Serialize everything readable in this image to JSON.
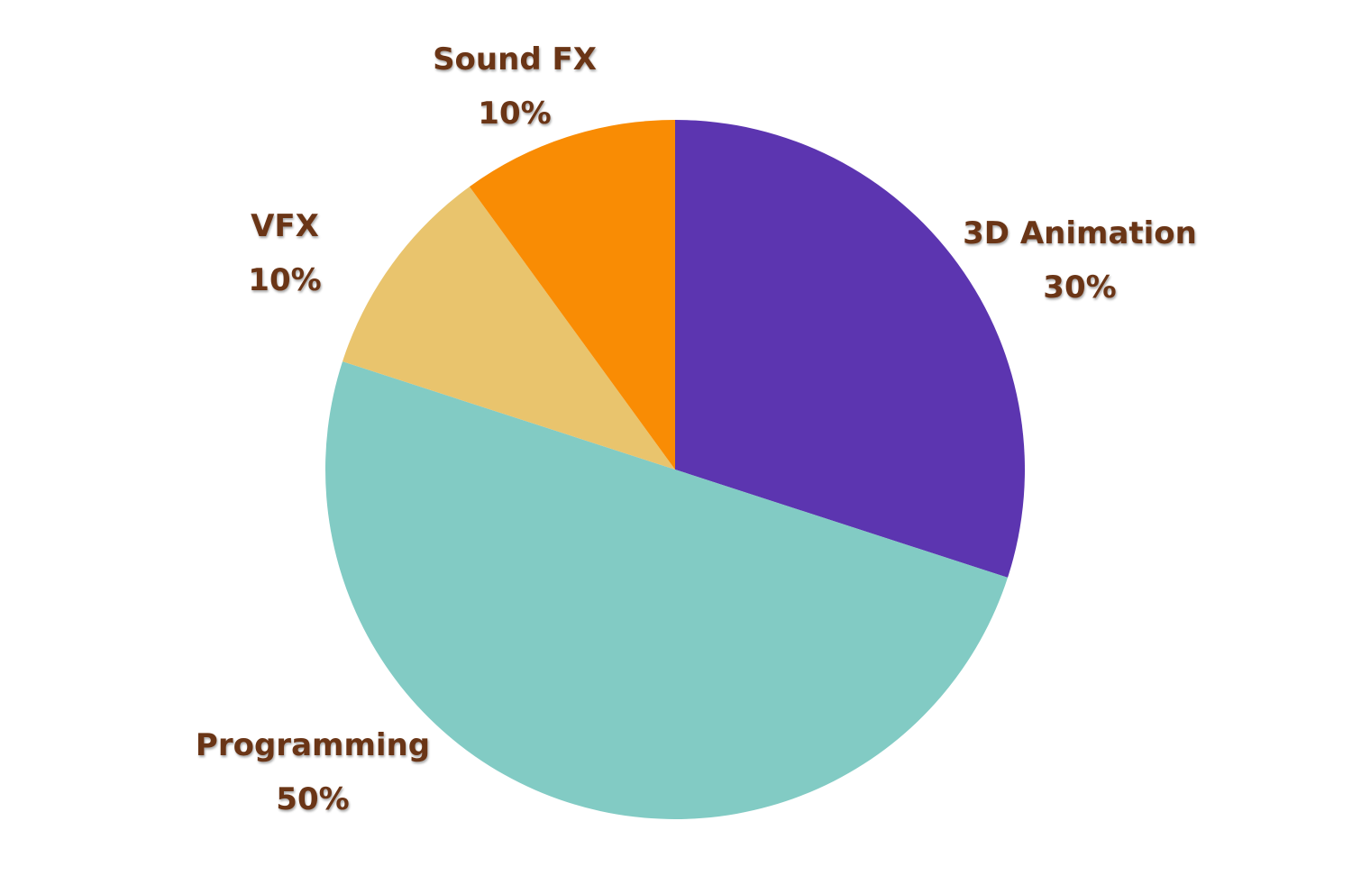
{
  "chart_data": {
    "type": "pie",
    "slices": [
      {
        "label": "3D Animation",
        "value": 30,
        "percent_label": "30%",
        "color": "#5c35b0"
      },
      {
        "label": "Programming",
        "value": 50,
        "percent_label": "50%",
        "color": "#82cbc4"
      },
      {
        "label": "VFX",
        "value": 10,
        "percent_label": "10%",
        "color": "#e9c46d"
      },
      {
        "label": "Sound FX",
        "value": 10,
        "percent_label": "10%",
        "color": "#f98c04"
      }
    ],
    "start_angle_deg": 0,
    "direction": "clockwise",
    "label_color": "#6b3416",
    "legend": "none"
  }
}
